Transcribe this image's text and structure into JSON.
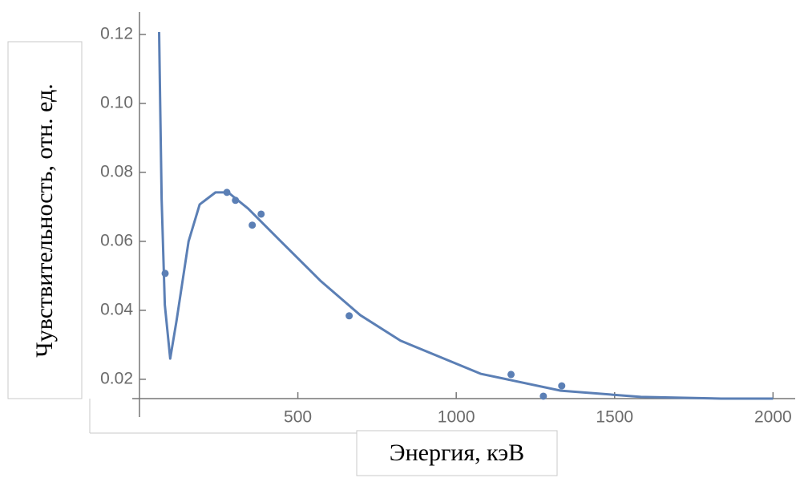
{
  "chart_data": {
    "type": "scatter",
    "x_label": "Энергия, кэВ",
    "y_label": "Чувствительность,  отн. ед.",
    "xlim": [
      0,
      2070
    ],
    "ylim": [
      0.0144,
      0.1265
    ],
    "xticks": [
      500,
      1000,
      1500,
      2000
    ],
    "yticks": [
      0.02,
      0.04,
      0.06,
      0.08,
      {
        "value": 0.1,
        "label": "0.10"
      },
      0.12
    ],
    "series": [
      {
        "type": "scatter",
        "color": "#5b7fb5",
        "x": [
          81,
          276,
          303,
          356,
          384,
          662,
          1173,
          1275,
          1333
        ],
        "values": [
          0.0507,
          0.0742,
          0.0719,
          0.0647,
          0.0679,
          0.0384,
          0.0214,
          0.0151,
          0.0181
        ]
      },
      {
        "type": "line",
        "color": "#5b7fb5",
        "x": [
          62,
          65,
          70,
          80,
          97,
          117,
          155,
          190,
          240,
          280,
          343,
          444,
          571,
          697,
          824,
          1077,
          1330,
          1583,
          1836,
          2000
        ],
        "values": [
          0.1207,
          0.102,
          0.072,
          0.0416,
          0.026,
          0.037,
          0.06,
          0.0707,
          0.0742,
          0.0742,
          0.0695,
          0.0602,
          0.0486,
          0.0386,
          0.0312,
          0.0216,
          0.0167,
          0.0149,
          0.0144,
          0.0144
        ]
      }
    ]
  }
}
